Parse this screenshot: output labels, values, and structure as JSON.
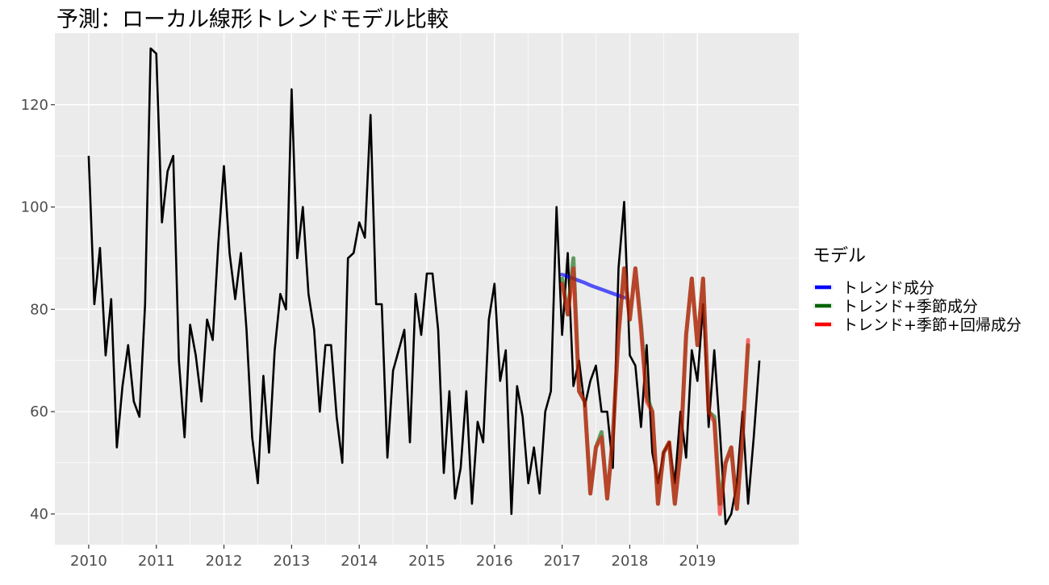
{
  "chart_data": {
    "type": "line",
    "title": "予測：ローカル線形トレンドモデル比較",
    "xlabel": "",
    "ylabel": "",
    "xlim": [
      2009.5,
      2020.5
    ],
    "ylim": [
      34,
      134
    ],
    "x_ticks": [
      2010,
      2011,
      2012,
      2013,
      2014,
      2015,
      2016,
      2017,
      2018,
      2019
    ],
    "y_ticks": [
      40,
      60,
      80,
      100,
      120
    ],
    "grid": true,
    "legend": {
      "title": "モデル",
      "position": "right"
    },
    "observed": {
      "start": 2010,
      "color": "#000000",
      "values": [
        110,
        81,
        92,
        71,
        82,
        53,
        65,
        73,
        62,
        59,
        81,
        131,
        130,
        97,
        107,
        110,
        70,
        55,
        77,
        71,
        62,
        78,
        74,
        93,
        108,
        91,
        82,
        91,
        76,
        55,
        46,
        67,
        52,
        72,
        83,
        80,
        123,
        90,
        100,
        83,
        76,
        60,
        73,
        73,
        59,
        50,
        90,
        91,
        97,
        94,
        118,
        81,
        81,
        51,
        68,
        72,
        76,
        54,
        83,
        75,
        87,
        87,
        76,
        48,
        64,
        43,
        49,
        64,
        42,
        58,
        54,
        78,
        85,
        66,
        72,
        40,
        65,
        59,
        46,
        53,
        44,
        60,
        64,
        100,
        75,
        91,
        65,
        70,
        61,
        66,
        69,
        60,
        60,
        49,
        88,
        101,
        71,
        69,
        57,
        73,
        52,
        46,
        52,
        54,
        46,
        60,
        51,
        72,
        66,
        81,
        57,
        72,
        56,
        38,
        40,
        46,
        60,
        42,
        55,
        70
      ]
    },
    "series": [
      {
        "name": "トレンド成分",
        "color": "#0000ff",
        "start": 2017,
        "values": [
          86.8,
          86.4,
          86.0,
          85.6,
          85.2,
          84.7,
          84.3,
          83.9,
          83.5,
          83.1,
          82.7,
          82.3
        ]
      },
      {
        "name": "トレンド+季節成分",
        "color": "#006400",
        "start": 2017,
        "values": [
          86,
          79,
          90,
          64,
          62,
          44,
          53,
          56,
          43,
          55,
          75,
          88,
          78,
          88,
          77,
          63,
          60,
          42,
          52,
          54,
          42,
          52,
          75,
          86,
          73,
          86,
          60,
          59,
          42,
          50,
          53,
          41,
          55,
          73
        ]
      },
      {
        "name": "トレンド+季節+回帰成分",
        "color": "#ff0000",
        "start": 2017,
        "values": [
          85,
          79,
          88,
          64,
          62,
          44,
          53,
          55,
          43,
          55,
          75,
          88,
          78,
          88,
          76,
          62,
          60,
          42,
          52,
          54,
          42,
          52,
          75,
          86,
          73,
          86,
          60,
          58,
          40,
          50,
          53,
          41,
          55,
          74
        ]
      }
    ]
  }
}
